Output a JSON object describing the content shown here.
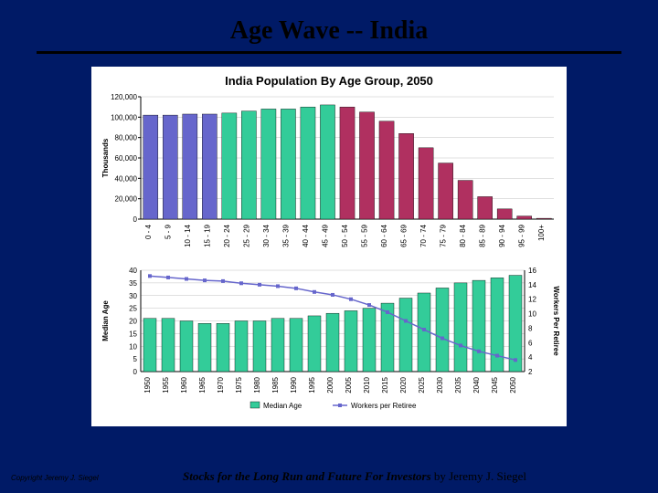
{
  "slide": {
    "title": "Age Wave -- India",
    "copyright": "Copyright Jeremy J. Siegel",
    "footer_book": "Stocks for the Long Run and Future For Investors",
    "footer_byline": " by Jeremy J. Siegel"
  },
  "colors": {
    "background": "#001a66",
    "panel": "#ffffff",
    "text": "#000000",
    "grid": "#c0c0c0",
    "bar_group_a": "#6666cc",
    "bar_group_b": "#33cc99",
    "bar_group_c": "#b03060",
    "line_workers": "#6666cc",
    "median_bars": "#33cc99"
  },
  "top_chart": {
    "type": "bar",
    "title": "India Population By Age Group, 2050",
    "ylabel": "Thousands",
    "ylim": [
      0,
      120000
    ],
    "ytick_step": 20000,
    "categories": [
      "0 - 4",
      "5 - 9",
      "10 - 14",
      "15 - 19",
      "20 - 24",
      "25 - 29",
      "30 - 34",
      "35 - 39",
      "40 - 44",
      "45 - 49",
      "50 - 54",
      "55 - 59",
      "60 - 64",
      "65 - 69",
      "70 - 74",
      "75 - 79",
      "80 - 84",
      "85 - 89",
      "90 - 94",
      "95 - 99",
      "100+"
    ],
    "values": [
      102000,
      102000,
      103000,
      103000,
      104000,
      106000,
      108000,
      108000,
      110000,
      112000,
      110000,
      105000,
      96000,
      84000,
      70000,
      55000,
      38000,
      22000,
      10000,
      3000,
      800
    ],
    "group_breaks": [
      4,
      10
    ],
    "bar_width": 0.75,
    "grid": true
  },
  "bottom_chart": {
    "type": "bar+line",
    "legend": {
      "median": "Median Age",
      "workers": "Workers per Retiree"
    },
    "y1label": "Median Age",
    "y2label": "Workers Per Retiree",
    "y1lim": [
      0,
      40
    ],
    "y1tick_step": 5,
    "y2lim": [
      2,
      16
    ],
    "y2tick_step": 2,
    "categories": [
      "1950",
      "1955",
      "1960",
      "1965",
      "1970",
      "1975",
      "1980",
      "1985",
      "1990",
      "1995",
      "2000",
      "2005",
      "2010",
      "2015",
      "2020",
      "2025",
      "2030",
      "2035",
      "2040",
      "2045",
      "2050"
    ],
    "median_values": [
      21,
      21,
      20,
      19,
      19,
      20,
      20,
      21,
      21,
      22,
      23,
      24,
      25,
      27,
      29,
      31,
      33,
      35,
      36,
      37,
      38
    ],
    "workers_values": [
      15.2,
      15.0,
      14.8,
      14.6,
      14.5,
      14.2,
      14.0,
      13.8,
      13.5,
      13.0,
      12.6,
      12.0,
      11.2,
      10.2,
      9.0,
      7.8,
      6.6,
      5.6,
      4.8,
      4.2,
      3.6
    ],
    "bar_width": 0.7,
    "grid": true
  }
}
